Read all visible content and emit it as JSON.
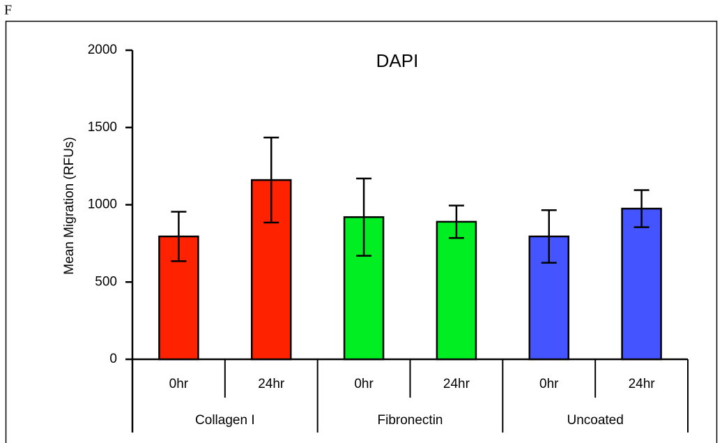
{
  "panel_label": "F",
  "chart_data": {
    "type": "bar",
    "title": "DAPI",
    "y_label": "Mean Migration (RFUs)",
    "categories": [
      "0hr",
      "24hr",
      "0hr",
      "24hr",
      "0hr",
      "24hr"
    ],
    "groups": [
      "Collagen I",
      "Fibronectin",
      "Uncoated"
    ],
    "values": [
      795,
      1160,
      920,
      890,
      795,
      975
    ],
    "errors": [
      160,
      275,
      250,
      105,
      170,
      120
    ],
    "colors": [
      "#ff2200",
      "#ff2200",
      "#00ee22",
      "#00ee22",
      "#4455ff",
      "#4455ff"
    ],
    "ylim": [
      0,
      2000
    ],
    "yticks": [
      0,
      500,
      1000,
      1500,
      2000
    ]
  }
}
